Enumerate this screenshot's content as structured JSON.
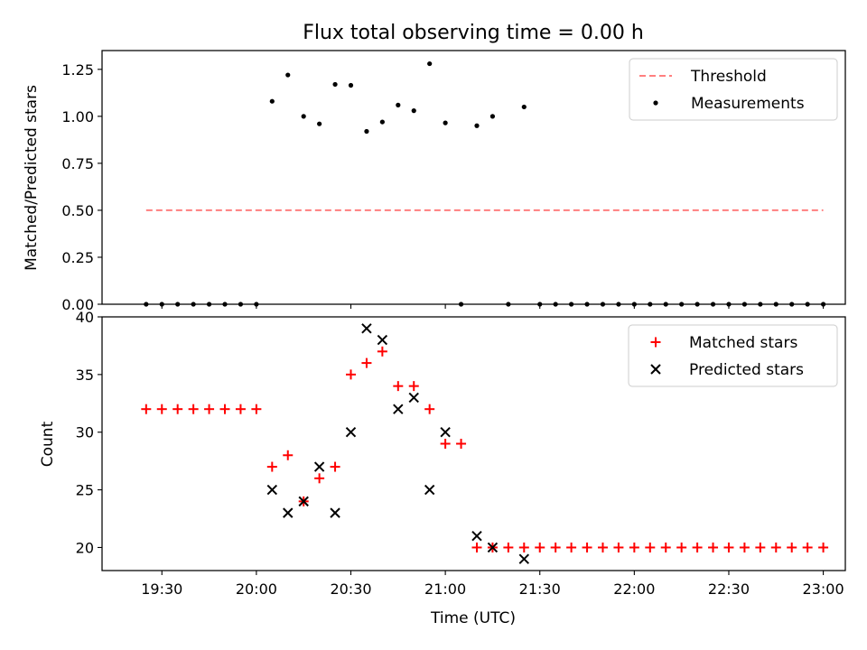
{
  "figure": {
    "title": "Flux total observing time = 0.00 h",
    "xlabel": "Time (UTC)",
    "x_ticks": [
      "19:30",
      "20:00",
      "20:30",
      "21:00",
      "21:30",
      "22:00",
      "22:30",
      "23:00"
    ]
  },
  "chart_data": [
    {
      "type": "scatter",
      "title": "Flux total observing time = 0.00 h",
      "xlabel": "",
      "ylabel": "Matched/Predicted stars",
      "ylim": [
        0,
        1.35
      ],
      "y_ticks": [
        "0.00",
        "0.25",
        "0.50",
        "0.75",
        "1.00",
        "1.25"
      ],
      "legend_position": "top-right",
      "series": [
        {
          "name": "Threshold",
          "kind": "dashed-line",
          "color": "#ff7f7f",
          "x": [
            "19:25",
            "23:00"
          ],
          "y": [
            0.5,
            0.5
          ]
        },
        {
          "name": "Measurements",
          "kind": "dot",
          "color": "#000000",
          "x": [
            "19:25",
            "19:30",
            "19:35",
            "19:40",
            "19:45",
            "19:50",
            "19:55",
            "20:00",
            "20:05",
            "20:10",
            "20:15",
            "20:20",
            "20:25",
            "20:30",
            "20:35",
            "20:40",
            "20:45",
            "20:50",
            "20:55",
            "21:00",
            "21:05",
            "21:10",
            "21:15",
            "21:20",
            "21:25",
            "21:30",
            "21:35",
            "21:40",
            "21:45",
            "21:50",
            "21:55",
            "22:00",
            "22:05",
            "22:10",
            "22:15",
            "22:20",
            "22:25",
            "22:30",
            "22:35",
            "22:40",
            "22:45",
            "22:50",
            "22:55",
            "23:00"
          ],
          "y": [
            0,
            0,
            0,
            0,
            0,
            0,
            0,
            0,
            1.08,
            1.22,
            1.0,
            0.96,
            1.17,
            1.165,
            0.92,
            0.97,
            1.06,
            1.03,
            1.28,
            0.965,
            0,
            0.95,
            1.0,
            0,
            1.05,
            0,
            0,
            0,
            0,
            0,
            0,
            0,
            0,
            0,
            0,
            0,
            0,
            0,
            0,
            0,
            0,
            0,
            0,
            0
          ]
        }
      ]
    },
    {
      "type": "scatter",
      "xlabel": "Time (UTC)",
      "ylabel": "Count",
      "ylim": [
        18,
        40
      ],
      "y_ticks": [
        "20",
        "25",
        "30",
        "35",
        "40"
      ],
      "legend_position": "top-right",
      "series": [
        {
          "name": "Matched stars",
          "marker": "+",
          "color": "#ff0000",
          "x": [
            "19:25",
            "19:30",
            "19:35",
            "19:40",
            "19:45",
            "19:50",
            "19:55",
            "20:00",
            "20:05",
            "20:10",
            "20:15",
            "20:20",
            "20:25",
            "20:30",
            "20:35",
            "20:40",
            "20:45",
            "20:50",
            "20:55",
            "21:00",
            "21:05",
            "21:10",
            "21:15",
            "21:20",
            "21:25",
            "21:30",
            "21:35",
            "21:40",
            "21:45",
            "21:50",
            "21:55",
            "22:00",
            "22:05",
            "22:10",
            "22:15",
            "22:20",
            "22:25",
            "22:30",
            "22:35",
            "22:40",
            "22:45",
            "22:50",
            "22:55",
            "23:00"
          ],
          "y": [
            32,
            32,
            32,
            32,
            32,
            32,
            32,
            32,
            27,
            28,
            24,
            26,
            27,
            35,
            36,
            37,
            34,
            34,
            32,
            29,
            29,
            20,
            20,
            20,
            20,
            20,
            20,
            20,
            20,
            20,
            20,
            20,
            20,
            20,
            20,
            20,
            20,
            20,
            20,
            20,
            20,
            20,
            20,
            20
          ]
        },
        {
          "name": "Predicted stars",
          "marker": "x",
          "color": "#000000",
          "x": [
            "20:05",
            "20:10",
            "20:15",
            "20:20",
            "20:25",
            "20:30",
            "20:35",
            "20:40",
            "20:45",
            "20:50",
            "20:55",
            "21:00",
            "21:10",
            "21:15",
            "21:25"
          ],
          "y": [
            25,
            23,
            24,
            27,
            23,
            30,
            39,
            38,
            32,
            33,
            25,
            30,
            21,
            20,
            19
          ]
        }
      ]
    }
  ]
}
